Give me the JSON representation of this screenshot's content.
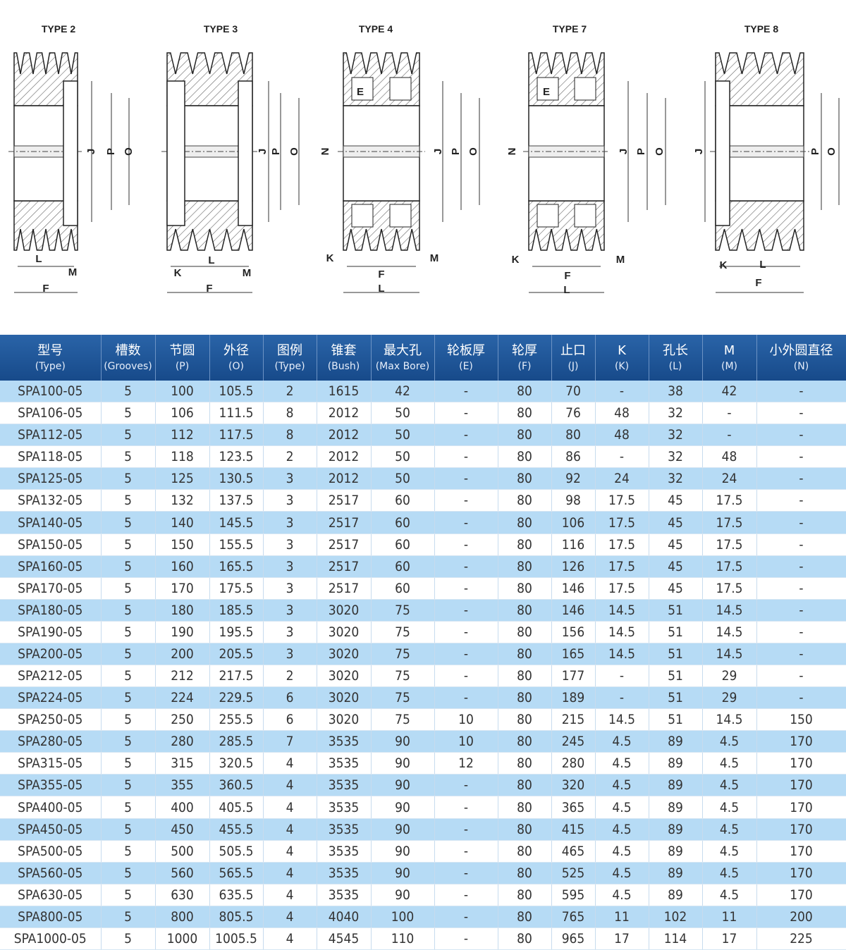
{
  "drawings": [
    {
      "title": "TYPE 2",
      "labels": [
        "J",
        "P",
        "O",
        "L",
        "M",
        "F"
      ]
    },
    {
      "title": "TYPE 3",
      "labels": [
        "J",
        "P",
        "O",
        "K",
        "L",
        "M",
        "F"
      ]
    },
    {
      "title": "TYPE 4",
      "labels": [
        "E",
        "N",
        "J",
        "P",
        "O",
        "K",
        "F",
        "M",
        "L"
      ]
    },
    {
      "title": "TYPE 7",
      "labels": [
        "E",
        "N",
        "J",
        "P",
        "O",
        "K",
        "F",
        "M",
        "L"
      ]
    },
    {
      "title": "TYPE 8",
      "labels": [
        "J",
        "P",
        "O",
        "K",
        "L",
        "F"
      ]
    }
  ],
  "table": {
    "header": [
      {
        "zh": "型号",
        "en": "(Type)"
      },
      {
        "zh": "槽数",
        "en": "(Grooves)"
      },
      {
        "zh": "节圆",
        "en": "(P)"
      },
      {
        "zh": "外径",
        "en": "(O)"
      },
      {
        "zh": "图例",
        "en": "(Type)"
      },
      {
        "zh": "锥套",
        "en": "(Bush)"
      },
      {
        "zh": "最大孔",
        "en": "(Max Bore)"
      },
      {
        "zh": "轮板厚",
        "en": "(E)"
      },
      {
        "zh": "轮厚",
        "en": "(F)"
      },
      {
        "zh": "止口",
        "en": "(J)"
      },
      {
        "zh": "K",
        "en": "(K)"
      },
      {
        "zh": "孔长",
        "en": "(L)"
      },
      {
        "zh": "M",
        "en": "(M)"
      },
      {
        "zh": "小外圆直径",
        "en": "(N)"
      }
    ],
    "rows": [
      [
        "SPA100-05",
        "5",
        "100",
        "105.5",
        "2",
        "1615",
        "42",
        "-",
        "80",
        "70",
        "-",
        "38",
        "42",
        "-"
      ],
      [
        "SPA106-05",
        "5",
        "106",
        "111.5",
        "8",
        "2012",
        "50",
        "-",
        "80",
        "76",
        "48",
        "32",
        "-",
        "-"
      ],
      [
        "SPA112-05",
        "5",
        "112",
        "117.5",
        "8",
        "2012",
        "50",
        "-",
        "80",
        "80",
        "48",
        "32",
        "-",
        "-"
      ],
      [
        "SPA118-05",
        "5",
        "118",
        "123.5",
        "2",
        "2012",
        "50",
        "-",
        "80",
        "86",
        "-",
        "32",
        "48",
        "-"
      ],
      [
        "SPA125-05",
        "5",
        "125",
        "130.5",
        "3",
        "2012",
        "50",
        "-",
        "80",
        "92",
        "24",
        "32",
        "24",
        "-"
      ],
      [
        "SPA132-05",
        "5",
        "132",
        "137.5",
        "3",
        "2517",
        "60",
        "-",
        "80",
        "98",
        "17.5",
        "45",
        "17.5",
        "-"
      ],
      [
        "SPA140-05",
        "5",
        "140",
        "145.5",
        "3",
        "2517",
        "60",
        "-",
        "80",
        "106",
        "17.5",
        "45",
        "17.5",
        "-"
      ],
      [
        "SPA150-05",
        "5",
        "150",
        "155.5",
        "3",
        "2517",
        "60",
        "-",
        "80",
        "116",
        "17.5",
        "45",
        "17.5",
        "-"
      ],
      [
        "SPA160-05",
        "5",
        "160",
        "165.5",
        "3",
        "2517",
        "60",
        "-",
        "80",
        "126",
        "17.5",
        "45",
        "17.5",
        "-"
      ],
      [
        "SPA170-05",
        "5",
        "170",
        "175.5",
        "3",
        "2517",
        "60",
        "-",
        "80",
        "146",
        "17.5",
        "45",
        "17.5",
        "-"
      ],
      [
        "SPA180-05",
        "5",
        "180",
        "185.5",
        "3",
        "3020",
        "75",
        "-",
        "80",
        "146",
        "14.5",
        "51",
        "14.5",
        "-"
      ],
      [
        "SPA190-05",
        "5",
        "190",
        "195.5",
        "3",
        "3020",
        "75",
        "-",
        "80",
        "156",
        "14.5",
        "51",
        "14.5",
        "-"
      ],
      [
        "SPA200-05",
        "5",
        "200",
        "205.5",
        "3",
        "3020",
        "75",
        "-",
        "80",
        "165",
        "14.5",
        "51",
        "14.5",
        "-"
      ],
      [
        "SPA212-05",
        "5",
        "212",
        "217.5",
        "2",
        "3020",
        "75",
        "-",
        "80",
        "177",
        "-",
        "51",
        "29",
        "-"
      ],
      [
        "SPA224-05",
        "5",
        "224",
        "229.5",
        "6",
        "3020",
        "75",
        "-",
        "80",
        "189",
        "-",
        "51",
        "29",
        "-"
      ],
      [
        "SPA250-05",
        "5",
        "250",
        "255.5",
        "6",
        "3020",
        "75",
        "10",
        "80",
        "215",
        "14.5",
        "51",
        "14.5",
        "150"
      ],
      [
        "SPA280-05",
        "5",
        "280",
        "285.5",
        "7",
        "3535",
        "90",
        "10",
        "80",
        "245",
        "4.5",
        "89",
        "4.5",
        "170"
      ],
      [
        "SPA315-05",
        "5",
        "315",
        "320.5",
        "4",
        "3535",
        "90",
        "12",
        "80",
        "280",
        "4.5",
        "89",
        "4.5",
        "170"
      ],
      [
        "SPA355-05",
        "5",
        "355",
        "360.5",
        "4",
        "3535",
        "90",
        "-",
        "80",
        "320",
        "4.5",
        "89",
        "4.5",
        "170"
      ],
      [
        "SPA400-05",
        "5",
        "400",
        "405.5",
        "4",
        "3535",
        "90",
        "-",
        "80",
        "365",
        "4.5",
        "89",
        "4.5",
        "170"
      ],
      [
        "SPA450-05",
        "5",
        "450",
        "455.5",
        "4",
        "3535",
        "90",
        "-",
        "80",
        "415",
        "4.5",
        "89",
        "4.5",
        "170"
      ],
      [
        "SPA500-05",
        "5",
        "500",
        "505.5",
        "4",
        "3535",
        "90",
        "-",
        "80",
        "465",
        "4.5",
        "89",
        "4.5",
        "170"
      ],
      [
        "SPA560-05",
        "5",
        "560",
        "565.5",
        "4",
        "3535",
        "90",
        "-",
        "80",
        "525",
        "4.5",
        "89",
        "4.5",
        "170"
      ],
      [
        "SPA630-05",
        "5",
        "630",
        "635.5",
        "4",
        "3535",
        "90",
        "-",
        "80",
        "595",
        "4.5",
        "89",
        "4.5",
        "170"
      ],
      [
        "SPA800-05",
        "5",
        "800",
        "805.5",
        "4",
        "4040",
        "100",
        "-",
        "80",
        "765",
        "11",
        "102",
        "11",
        "200"
      ],
      [
        "SPA1000-05",
        "5",
        "1000",
        "1005.5",
        "4",
        "4545",
        "110",
        "-",
        "80",
        "965",
        "17",
        "114",
        "17",
        "225"
      ]
    ]
  }
}
